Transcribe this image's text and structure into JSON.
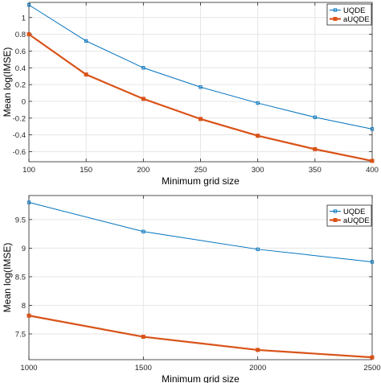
{
  "colors": {
    "uqde": "#0072BD",
    "auqde": "#D95319",
    "grid": "#e6e6e6",
    "axes": "#262626"
  },
  "chart_data": [
    {
      "type": "line",
      "xlabel": "Minimum grid size",
      "ylabel": "Mean log(IMSE)",
      "xlim": [
        100,
        400
      ],
      "ylim": [
        -0.72,
        1.18
      ],
      "xticks": [
        100,
        150,
        200,
        250,
        300,
        350,
        400
      ],
      "xtick_labels": [
        "100",
        "150",
        "200",
        "250",
        "300",
        "350",
        "400"
      ],
      "yticks": [
        -0.6,
        -0.4,
        -0.2,
        0,
        0.2,
        0.4,
        0.6,
        0.8,
        1
      ],
      "ytick_labels": [
        "-0.6",
        "-0.4",
        "-0.2",
        "0",
        "0.2",
        "0.4",
        "0.6",
        "0.8",
        "1"
      ],
      "grid": true,
      "legend": "top-right",
      "x": [
        100,
        150,
        200,
        250,
        300,
        350,
        400
      ],
      "series": [
        {
          "name": "UQDE",
          "values": [
            1.15,
            0.72,
            0.4,
            0.17,
            -0.02,
            -0.19,
            -0.33
          ]
        },
        {
          "name": "aUQDE",
          "values": [
            0.8,
            0.32,
            0.03,
            -0.21,
            -0.41,
            -0.57,
            -0.71
          ]
        }
      ]
    },
    {
      "type": "line",
      "xlabel": "Minimum grid size",
      "ylabel": "Mean log(IMSE)",
      "xlim": [
        1000,
        2500
      ],
      "ylim": [
        7.05,
        9.92
      ],
      "xticks": [
        1000,
        1500,
        2000,
        2500
      ],
      "xtick_labels": [
        "1000",
        "1500",
        "2000",
        "2500"
      ],
      "yticks": [
        7.5,
        8,
        8.5,
        9,
        9.5
      ],
      "ytick_labels": [
        "7.5",
        "8",
        "8.5",
        "9",
        "9.5"
      ],
      "grid": true,
      "legend": "top-right",
      "x": [
        1000,
        1500,
        2000,
        2500
      ],
      "series": [
        {
          "name": "UQDE",
          "values": [
            9.8,
            9.29,
            8.98,
            8.76
          ]
        },
        {
          "name": "aUQDE",
          "values": [
            7.82,
            7.45,
            7.22,
            7.09
          ]
        }
      ]
    }
  ]
}
